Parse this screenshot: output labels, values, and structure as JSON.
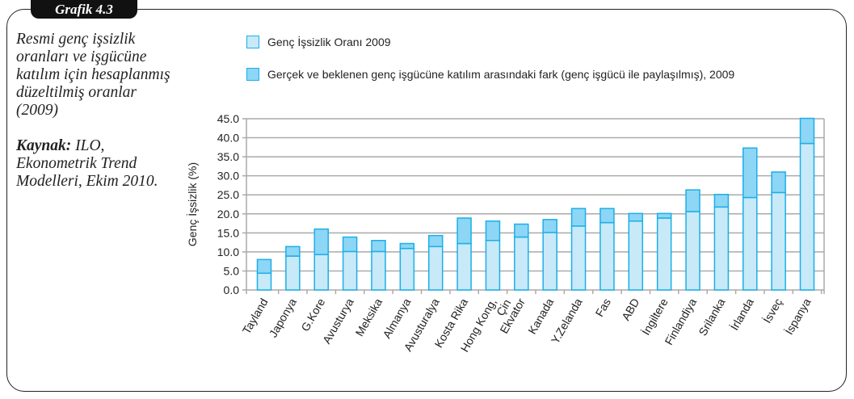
{
  "badge": "Grafik 4.3",
  "description": "Resmi genç işsizlik oranları ve işgücüne katılım için hesaplanmış düzeltilmiş oranlar (2009)",
  "source_label": "Kaynak:",
  "source_text": "ILO, Ekonometrik Trend Modelleri, Ekim 2010.",
  "colors": {
    "base": "#c8e9f8",
    "gap": "#8dd6f5",
    "stroke": "#1ab0e8"
  },
  "chart_data": {
    "type": "bar",
    "stacked": true,
    "ylabel": "Genç İşsizlik (%)",
    "ylim": [
      0,
      45
    ],
    "yticks": [
      "0.0",
      "5.0",
      "10.0",
      "15.0",
      "20.0",
      "25.0",
      "30.0",
      "35.0",
      "40.0",
      "45.0"
    ],
    "grid": true,
    "legend_position": "top",
    "categories": [
      "Tayland",
      "Japonya",
      "G.Kore",
      "Avusturya",
      "Meksika",
      "Almanya",
      "Avusturalya",
      "Kosta Rika",
      "Hong Kong,\nÇin",
      "Ekvator",
      "Kanada",
      "Y.Zelanda",
      "Fas",
      "ABD",
      "İngiltere",
      "Finlandiya",
      "Srilanka",
      "İrlanda",
      "İsveç",
      "İspanya"
    ],
    "series": [
      {
        "name": "Genç İşsizlik Oranı 2009",
        "values": [
          4.4,
          8.9,
          9.3,
          10.1,
          10.1,
          10.9,
          11.4,
          12.2,
          13.0,
          13.9,
          15.1,
          16.8,
          17.7,
          18.1,
          18.9,
          20.6,
          21.8,
          24.3,
          25.6,
          38.5
        ]
      },
      {
        "name": "Gerçek ve beklenen genç işgücüne katılım arasındaki fark (genç işgücü ile paylaşılmış), 2009",
        "values": [
          3.6,
          2.5,
          6.7,
          3.8,
          2.9,
          1.3,
          2.9,
          6.7,
          5.1,
          3.4,
          3.4,
          4.6,
          3.7,
          2.0,
          1.2,
          5.7,
          3.3,
          13.0,
          5.4,
          6.6
        ]
      }
    ]
  }
}
